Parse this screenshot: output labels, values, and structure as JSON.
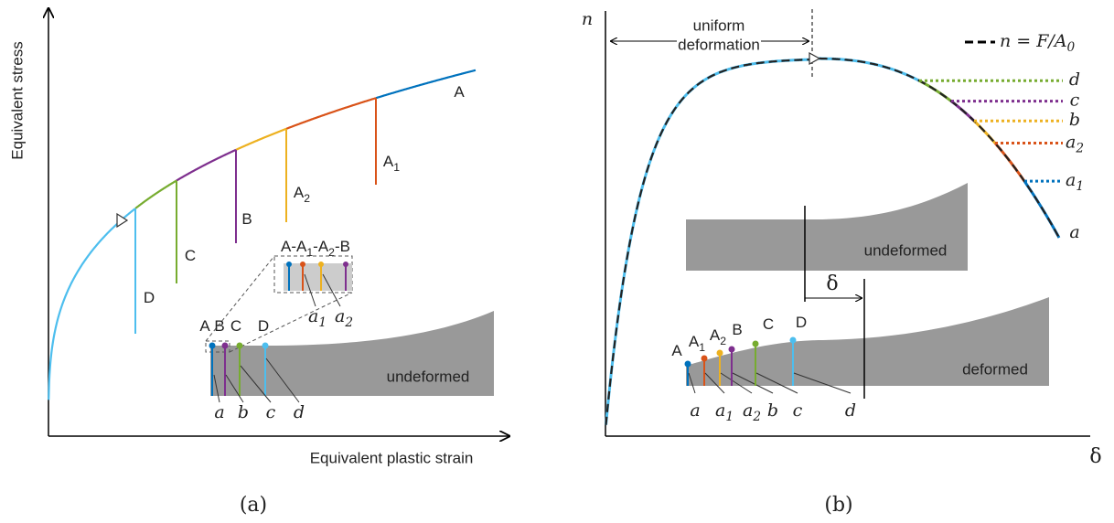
{
  "panel_a": {
    "caption": "(a)",
    "y_axis_label": "Equivalent stress",
    "x_axis_label": "Equivalent plastic strain",
    "curve_labels": [
      {
        "text": "A"
      },
      {
        "text": "A",
        "sub": "1"
      },
      {
        "text": "A",
        "sub": "2"
      },
      {
        "text": "B"
      },
      {
        "text": "C"
      },
      {
        "text": "D"
      }
    ],
    "inset_label": [
      "A-A",
      "1",
      "-A",
      "2",
      "-B"
    ],
    "inset_bottom_labels": [
      {
        "text": "a",
        "sub": "1"
      },
      {
        "text": "a",
        "sub": "2"
      }
    ],
    "specimen_top_labels": [
      {
        "text": "A"
      },
      {
        "text": "B"
      },
      {
        "text": "C"
      },
      {
        "text": "D"
      }
    ],
    "specimen_bottom_labels": [
      {
        "text": "a"
      },
      {
        "text": "b"
      },
      {
        "text": "c"
      },
      {
        "text": "d"
      }
    ],
    "specimen_label": "undeformed"
  },
  "panel_b": {
    "caption": "(b)",
    "y_axis_label": "n",
    "x_axis_label": "δ",
    "annotation": [
      "uniform",
      "deformation"
    ],
    "legend": [
      "n = F/A",
      "0"
    ],
    "curve_labels": [
      {
        "text": "d"
      },
      {
        "text": "c"
      },
      {
        "text": "b"
      },
      {
        "text": "a",
        "sub": "2"
      },
      {
        "text": "a",
        "sub": "1"
      },
      {
        "text": "a"
      }
    ],
    "undeformed_label": "undeformed",
    "deformed_label": "deformed",
    "elongation_label": "δ",
    "specimen_top_labels": [
      {
        "text": "A"
      },
      {
        "text": "A",
        "sub": "1"
      },
      {
        "text": "A",
        "sub": "2"
      },
      {
        "text": "B"
      },
      {
        "text": "C"
      },
      {
        "text": "D"
      }
    ],
    "specimen_bottom_labels": [
      {
        "text": "a"
      },
      {
        "text": "a",
        "sub": "1"
      },
      {
        "text": "a",
        "sub": "2"
      },
      {
        "text": "b"
      },
      {
        "text": "c"
      },
      {
        "text": "d"
      }
    ]
  }
}
